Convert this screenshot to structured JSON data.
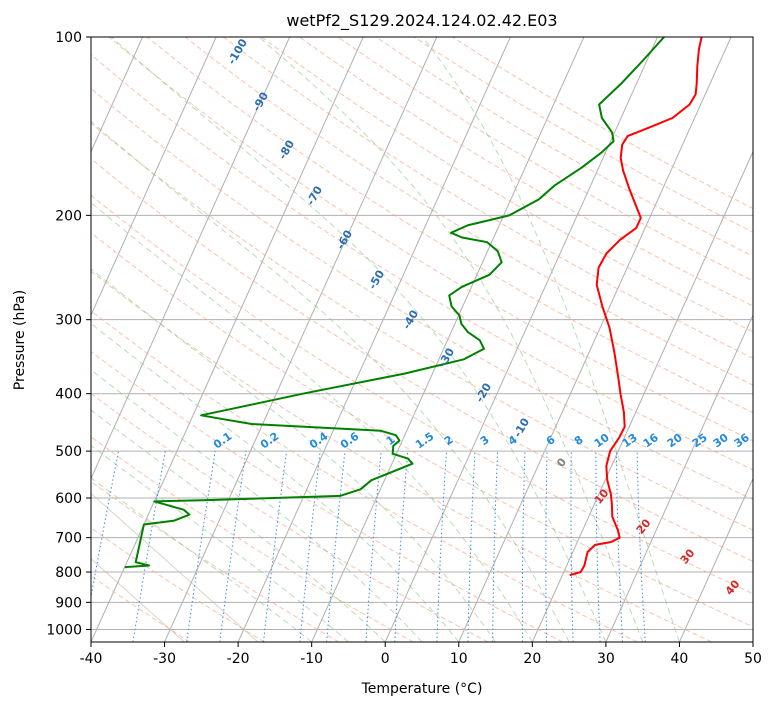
{
  "chart_data": {
    "type": "line",
    "title": "wetPf2_S129.2024.124.02.42.E03",
    "xlabel": "Temperature (°C)",
    "ylabel": "Pressure (hPa)",
    "xlim": [
      -40,
      50
    ],
    "ylim": [
      1050,
      100
    ],
    "yscale": "log",
    "grid": true,
    "x_ticks": [
      "-40",
      "-30",
      "-20",
      "-10",
      "0",
      "10",
      "20",
      "30",
      "40",
      "50"
    ],
    "y_ticks": [
      "100",
      "200",
      "300",
      "400",
      "500",
      "600",
      "700",
      "800",
      "900",
      "1000"
    ],
    "dry_adiabat_labels": [
      "-100",
      "-90",
      "-80",
      "-70",
      "-60",
      "-50",
      "-40",
      "-30",
      "-20",
      "-10",
      "0",
      "10",
      "20",
      "30",
      "40"
    ],
    "mixing_ratio_labels": [
      "0.1",
      "0.2",
      "0.4",
      "0.6",
      "1",
      "1.5",
      "2",
      "3",
      "4",
      "6",
      "8",
      "10",
      "13",
      "16",
      "20",
      "25",
      "30",
      "36"
    ],
    "series": [
      {
        "color": "#ff0000",
        "points": [
          [
            6,
            100
          ],
          [
            6.4,
            105
          ],
          [
            7.2,
            112
          ],
          [
            8.2,
            120
          ],
          [
            8.7,
            125
          ],
          [
            8.5,
            130
          ],
          [
            7,
            137
          ],
          [
            4.5,
            142
          ],
          [
            2,
            147
          ],
          [
            1.8,
            152
          ],
          [
            2.4,
            160
          ],
          [
            3.5,
            168
          ],
          [
            5.4,
            180
          ],
          [
            7.3,
            192
          ],
          [
            8.8,
            202
          ],
          [
            8.8,
            210
          ],
          [
            7.3,
            220
          ],
          [
            6.3,
            232
          ],
          [
            6.1,
            245
          ],
          [
            6.9,
            262
          ],
          [
            9,
            285
          ],
          [
            11.3,
            310
          ],
          [
            13.4,
            340
          ],
          [
            15.3,
            372
          ],
          [
            16.8,
            400
          ],
          [
            18.4,
            430
          ],
          [
            19.4,
            455
          ],
          [
            19.3,
            475
          ],
          [
            18.9,
            500
          ],
          [
            19.3,
            530
          ],
          [
            20.3,
            560
          ],
          [
            21.6,
            590
          ],
          [
            22.4,
            615
          ],
          [
            23.2,
            645
          ],
          [
            24.8,
            680
          ],
          [
            25.5,
            700
          ],
          [
            24.6,
            712
          ],
          [
            22.6,
            720
          ],
          [
            22,
            740
          ],
          [
            22.4,
            780
          ],
          [
            22.3,
            800
          ],
          [
            21,
            810
          ]
        ]
      },
      {
        "color": "#008000",
        "points": [
          [
            0.9,
            100
          ],
          [
            -0.6,
            110
          ],
          [
            -2.1,
            120
          ],
          [
            -3.8,
            130
          ],
          [
            -2.6,
            137
          ],
          [
            -0.3,
            145
          ],
          [
            0.4,
            150
          ],
          [
            -0.6,
            157
          ],
          [
            -2.3,
            166
          ],
          [
            -4.9,
            178
          ],
          [
            -6.2,
            188
          ],
          [
            -9.2,
            200
          ],
          [
            -14.3,
            208
          ],
          [
            -16.1,
            214
          ],
          [
            -14.3,
            218
          ],
          [
            -10.6,
            222
          ],
          [
            -8.6,
            230
          ],
          [
            -7.4,
            240
          ],
          [
            -8.3,
            252
          ],
          [
            -11.3,
            264
          ],
          [
            -12.5,
            273
          ],
          [
            -11.5,
            285
          ],
          [
            -9.9,
            295
          ],
          [
            -9.1,
            305
          ],
          [
            -7.7,
            315
          ],
          [
            -5.6,
            325
          ],
          [
            -4.5,
            336
          ],
          [
            -6.6,
            350
          ],
          [
            -13.8,
            370
          ],
          [
            -26.4,
            400
          ],
          [
            -35.4,
            425
          ],
          [
            -38.9,
            435
          ],
          [
            -36.5,
            440
          ],
          [
            -31.5,
            450
          ],
          [
            -13.5,
            462
          ],
          [
            -11.2,
            470
          ],
          [
            -10.4,
            480
          ],
          [
            -10.9,
            490
          ],
          [
            -10.5,
            505
          ],
          [
            -8.1,
            515
          ],
          [
            -7.2,
            525
          ],
          [
            -11.8,
            560
          ],
          [
            -12.7,
            580
          ],
          [
            -15.1,
            595
          ],
          [
            -32.9,
            605
          ],
          [
            -40.0,
            608
          ],
          [
            -35.5,
            628
          ],
          [
            -34.4,
            640
          ],
          [
            -36.1,
            655
          ],
          [
            -40.0,
            665
          ],
          [
            -38.8,
            770
          ],
          [
            -36.8,
            780
          ],
          [
            -40.0,
            785
          ]
        ]
      }
    ]
  }
}
